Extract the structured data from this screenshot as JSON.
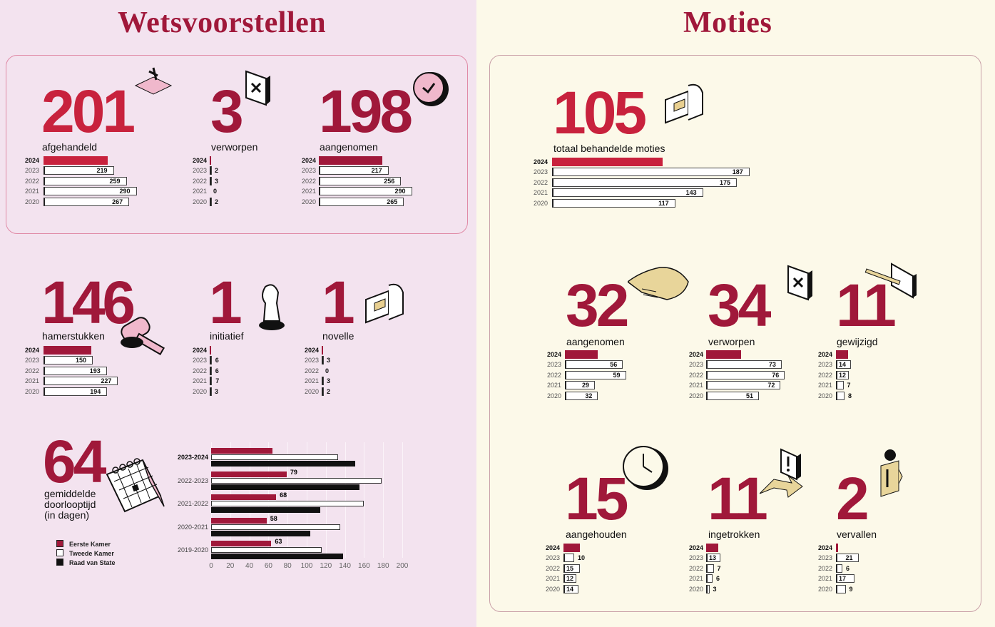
{
  "colors": {
    "accent": "#a0183a",
    "bright": "#c8223d",
    "left_bg": "#f3e3ef",
    "right_bg": "#fcf9e9"
  },
  "wetsvoorstellen": {
    "title": "Wetsvoorstellen",
    "panels": [
      {
        "id": "afgehandeld",
        "number": "201",
        "label": "afgehandeld",
        "icon": "stamp-icon",
        "bright": true,
        "data": [
          [
            "2024",
            201
          ],
          [
            "2023",
            219
          ],
          [
            "2022",
            259
          ],
          [
            "2021",
            290
          ],
          [
            "2020",
            267
          ]
        ]
      },
      {
        "id": "verworpen",
        "number": "3",
        "label": "verworpen",
        "icon": "rejected-document-icon",
        "data": [
          [
            "2024",
            3
          ],
          [
            "2023",
            2
          ],
          [
            "2022",
            3
          ],
          [
            "2021",
            0
          ],
          [
            "2020",
            2
          ]
        ]
      },
      {
        "id": "aangenomen",
        "number": "198",
        "label": "aangenomen",
        "icon": "approved-button-icon",
        "data": [
          [
            "2024",
            198
          ],
          [
            "2023",
            217
          ],
          [
            "2022",
            256
          ],
          [
            "2021",
            290
          ],
          [
            "2020",
            265
          ]
        ]
      },
      {
        "id": "hamerstukken",
        "number": "146",
        "label": "hamerstukken",
        "icon": "gavel-icon",
        "data": [
          [
            "2024",
            146
          ],
          [
            "2023",
            150
          ],
          [
            "2022",
            193
          ],
          [
            "2021",
            227
          ],
          [
            "2020",
            194
          ]
        ]
      },
      {
        "id": "initiatief",
        "number": "1",
        "label": "initiatief",
        "icon": "chess-knight-icon",
        "data": [
          [
            "2024",
            1
          ],
          [
            "2023",
            6
          ],
          [
            "2022",
            6
          ],
          [
            "2021",
            7
          ],
          [
            "2020",
            3
          ]
        ]
      },
      {
        "id": "novelle",
        "number": "1",
        "label": "novelle",
        "icon": "laptop-document-icon",
        "data": [
          [
            "2024",
            1
          ],
          [
            "2023",
            3
          ],
          [
            "2022",
            0
          ],
          [
            "2021",
            3
          ],
          [
            "2020",
            2
          ]
        ]
      }
    ],
    "doorlooptijd": {
      "number": "64",
      "label_lines": [
        "gemiddelde",
        "doorlooptijd",
        "(in dagen)"
      ],
      "icon": "calendar-icon"
    }
  },
  "moties": {
    "title": "Moties",
    "panels": [
      {
        "id": "totaal",
        "number": "105",
        "label": "totaal behandelde moties",
        "icon": "laptop-document-icon",
        "bright": true,
        "data": [
          [
            "2024",
            105
          ],
          [
            "2023",
            187
          ],
          [
            "2022",
            175
          ],
          [
            "2021",
            143
          ],
          [
            "2020",
            117
          ]
        ]
      },
      {
        "id": "m-aangenomen",
        "number": "32",
        "label": "aangenomen",
        "icon": "handshake-icon",
        "data": [
          [
            "2024",
            32
          ],
          [
            "2023",
            56
          ],
          [
            "2022",
            59
          ],
          [
            "2021",
            29
          ],
          [
            "2020",
            32
          ]
        ]
      },
      {
        "id": "m-verworpen",
        "number": "34",
        "label": "verworpen",
        "icon": "rejected-document-icon",
        "data": [
          [
            "2024",
            34
          ],
          [
            "2023",
            73
          ],
          [
            "2022",
            76
          ],
          [
            "2021",
            72
          ],
          [
            "2020",
            51
          ]
        ]
      },
      {
        "id": "gewijzigd",
        "number": "11",
        "label": "gewijzigd",
        "icon": "pencil-icon",
        "data": [
          [
            "2024",
            11
          ],
          [
            "2023",
            14
          ],
          [
            "2022",
            12
          ],
          [
            "2021",
            7
          ],
          [
            "2020",
            8
          ]
        ]
      },
      {
        "id": "aangehouden",
        "number": "15",
        "label": "aangehouden",
        "icon": "clock-icon",
        "data": [
          [
            "2024",
            15
          ],
          [
            "2023",
            10
          ],
          [
            "2022",
            15
          ],
          [
            "2021",
            12
          ],
          [
            "2020",
            14
          ]
        ]
      },
      {
        "id": "ingetrokken",
        "number": "11",
        "label": "ingetrokken",
        "icon": "exclamation-arrow-icon",
        "data": [
          [
            "2024",
            11
          ],
          [
            "2023",
            13
          ],
          [
            "2022",
            7
          ],
          [
            "2021",
            6
          ],
          [
            "2020",
            3
          ]
        ]
      },
      {
        "id": "vervallen",
        "number": "2",
        "label": "vervallen",
        "icon": "info-arrow-icon",
        "data": [
          [
            "2024",
            2
          ],
          [
            "2023",
            21
          ],
          [
            "2022",
            6
          ],
          [
            "2021",
            17
          ],
          [
            "2020",
            9
          ]
        ]
      }
    ]
  },
  "chart_data": {
    "type": "bar",
    "orientation": "horizontal",
    "categories": [
      "2023-2024",
      "2022-2023",
      "2021-2022",
      "2020-2021",
      "2019-2020"
    ],
    "series": [
      {
        "name": "Eerste Kamer",
        "color": "#a0183a",
        "values": [
          64,
          79,
          68,
          58,
          63
        ]
      },
      {
        "name": "Tweede Kamer",
        "color": "#ffffff",
        "values": [
          133,
          178,
          160,
          135,
          116
        ]
      },
      {
        "name": "Raad van State",
        "color": "#111111",
        "values": [
          151,
          155,
          114,
          104,
          138
        ]
      }
    ],
    "data_labels": {
      "Eerste Kamer": [
        "",
        "79",
        "68",
        "58",
        "63"
      ]
    },
    "xticks": [
      "0",
      "20",
      "40",
      "60",
      "80",
      "100",
      "120",
      "140",
      "160",
      "180",
      "200"
    ],
    "xlim": [
      0,
      200
    ],
    "grid": true,
    "legend": "bottom-left"
  }
}
